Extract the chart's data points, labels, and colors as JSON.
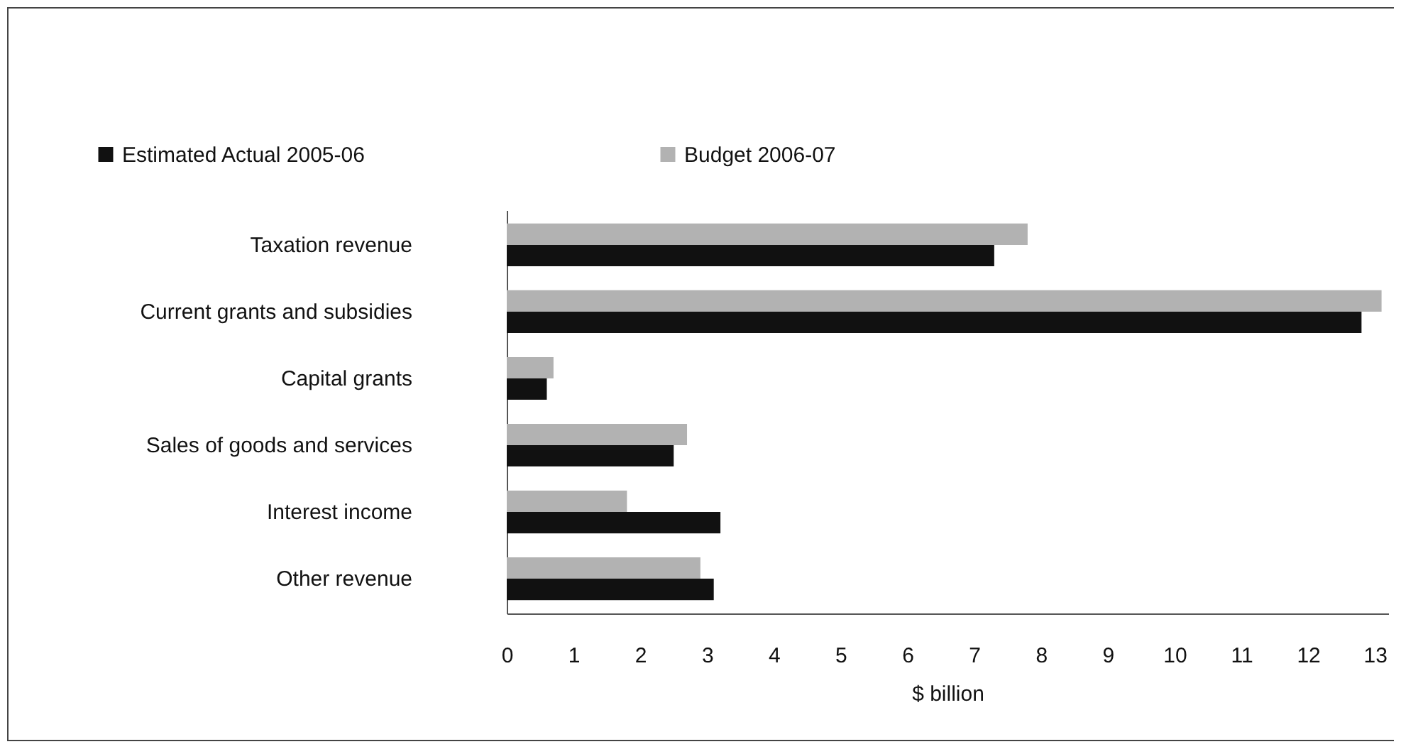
{
  "chart_data": {
    "type": "bar",
    "orientation": "horizontal",
    "xlabel": "$ billion",
    "categories": [
      "Taxation revenue",
      "Current grants and subsidies",
      "Capital grants",
      "Sales of goods and services",
      "Interest income",
      "Other revenue"
    ],
    "series": [
      {
        "name": "Estimated Actual 2005-06",
        "color": "#111111",
        "values": [
          7.3,
          12.8,
          0.6,
          2.5,
          3.2,
          3.1
        ]
      },
      {
        "name": "Budget 2006-07",
        "color": "#b2b2b2",
        "values": [
          7.8,
          13.1,
          0.7,
          2.7,
          1.8,
          2.9
        ]
      }
    ],
    "xlim": [
      0,
      13.2
    ],
    "xticks": [
      0,
      1,
      2,
      3,
      4,
      5,
      6,
      7,
      8,
      9,
      10,
      11,
      12,
      13
    ],
    "grid": false,
    "legend": "top left"
  }
}
